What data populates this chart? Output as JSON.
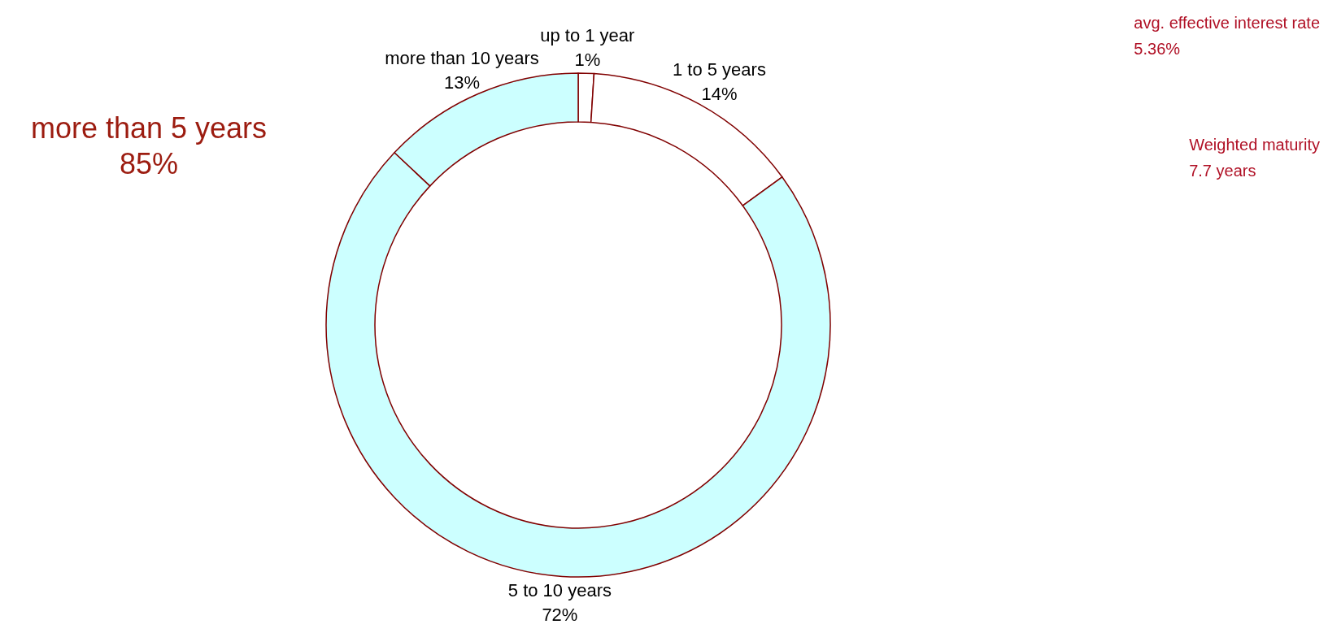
{
  "chart_data": {
    "type": "donut",
    "categories": [
      "up to 1 year",
      "1 to 5 years",
      "5 to 10 years",
      "more than 10 years"
    ],
    "values": [
      1,
      14,
      72,
      13
    ],
    "colors": [
      "#ffffff",
      "#ffffff",
      "#ccffff",
      "#ccffff"
    ],
    "value_labels": [
      "1%",
      "14%",
      "72%",
      "13%"
    ],
    "legend": false,
    "annotations": [
      "more than 5 years\n85%",
      "avg. effective interest rate\n5.36%",
      "Weighted maturity\n7.7 years"
    ]
  }
}
